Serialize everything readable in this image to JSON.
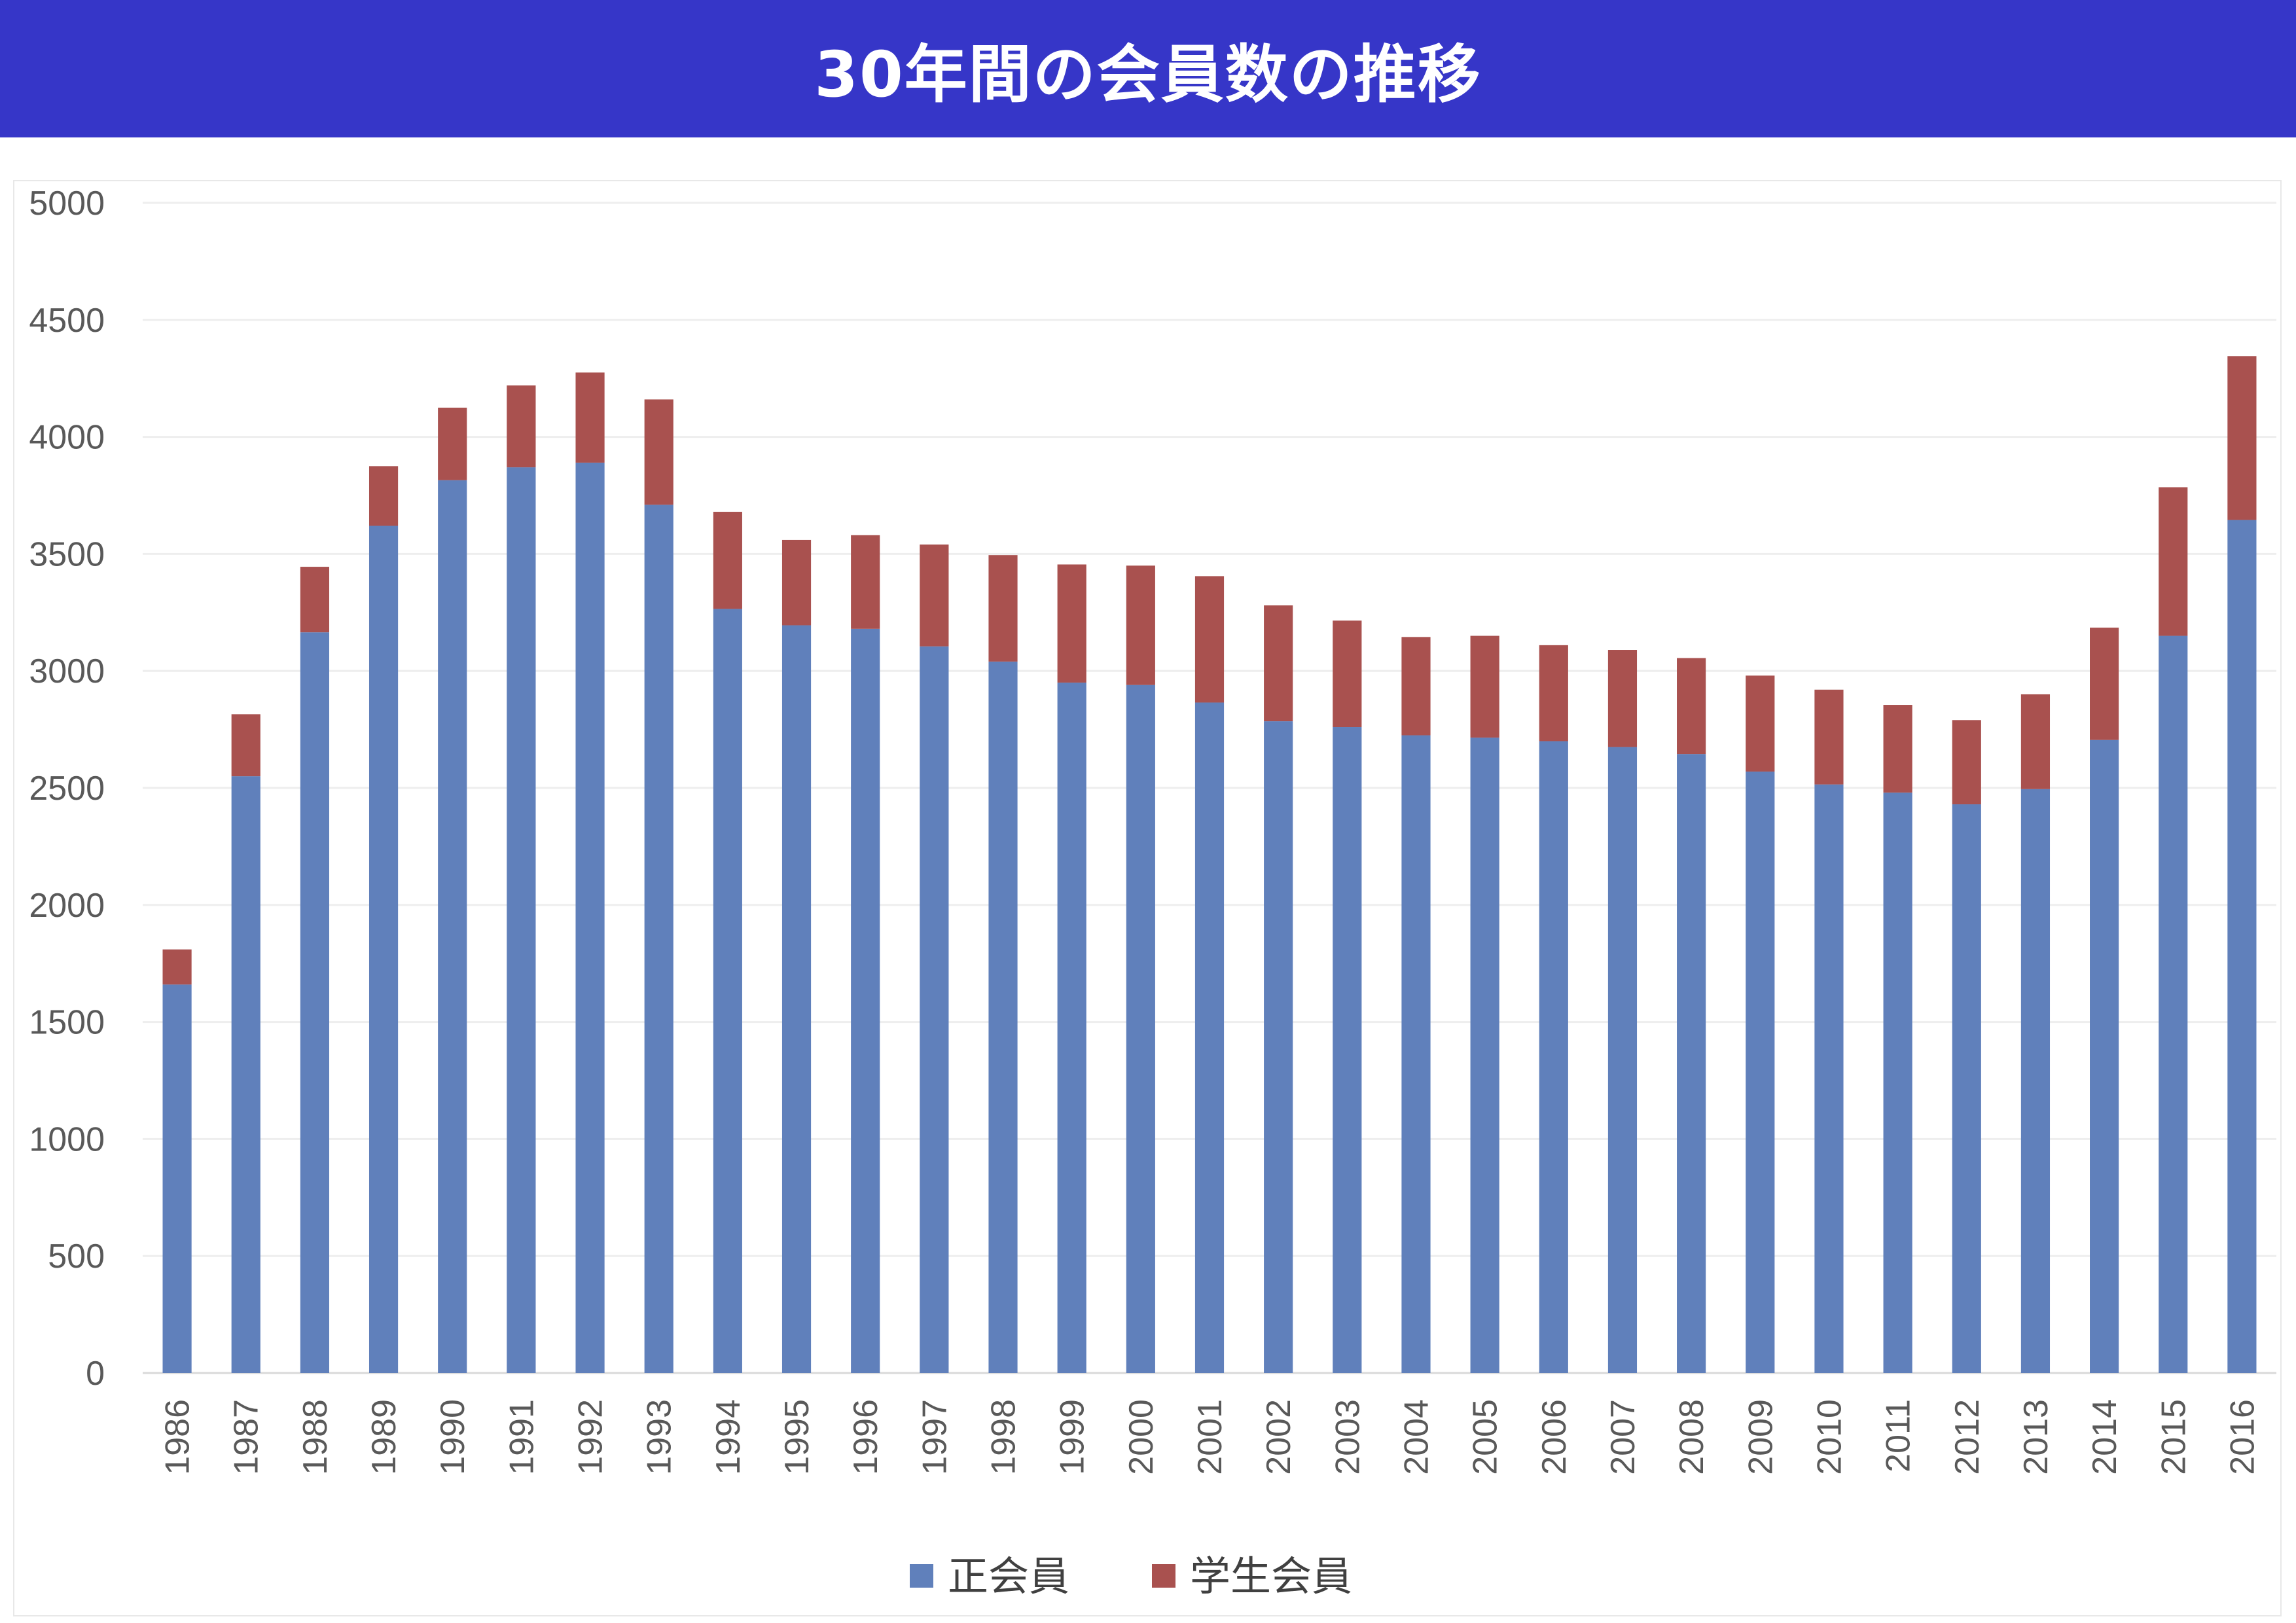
{
  "title": "30年間の会員数の推移",
  "colors": {
    "banner": "#3636c8",
    "regular": "#6080bb",
    "student": "#a9514f",
    "grid": "#eeeeee",
    "axis": "#d9d9d9"
  },
  "chart_data": {
    "type": "bar",
    "stacked": true,
    "categories": [
      "1986",
      "1987",
      "1988",
      "1989",
      "1990",
      "1991",
      "1992",
      "1993",
      "1994",
      "1995",
      "1996",
      "1997",
      "1998",
      "1999",
      "2000",
      "2001",
      "2002",
      "2003",
      "2004",
      "2005",
      "2006",
      "2007",
      "2008",
      "2009",
      "2010",
      "2011",
      "2012",
      "2013",
      "2014",
      "2015",
      "2016"
    ],
    "series": [
      {
        "name": "正会員",
        "color": "#6080bb",
        "values": [
          1660,
          2550,
          3165,
          3620,
          3815,
          3870,
          3890,
          3710,
          3265,
          3195,
          3180,
          3105,
          3040,
          2950,
          2940,
          2865,
          2785,
          2760,
          2725,
          2715,
          2700,
          2675,
          2645,
          2570,
          2515,
          2480,
          2430,
          2495,
          2705,
          3150,
          3645
        ]
      },
      {
        "name": "学生会員",
        "color": "#a9514f",
        "values": [
          150,
          265,
          280,
          255,
          310,
          350,
          385,
          450,
          415,
          365,
          400,
          435,
          455,
          505,
          510,
          540,
          495,
          455,
          420,
          435,
          410,
          415,
          410,
          410,
          405,
          375,
          360,
          405,
          480,
          635,
          700
        ]
      }
    ],
    "ylim": [
      0,
      5000
    ],
    "yticks": [
      0,
      500,
      1000,
      1500,
      2000,
      2500,
      3000,
      3500,
      4000,
      4500,
      5000
    ],
    "grid": true,
    "legend_position": "bottom",
    "xlabel": "",
    "ylabel": ""
  }
}
